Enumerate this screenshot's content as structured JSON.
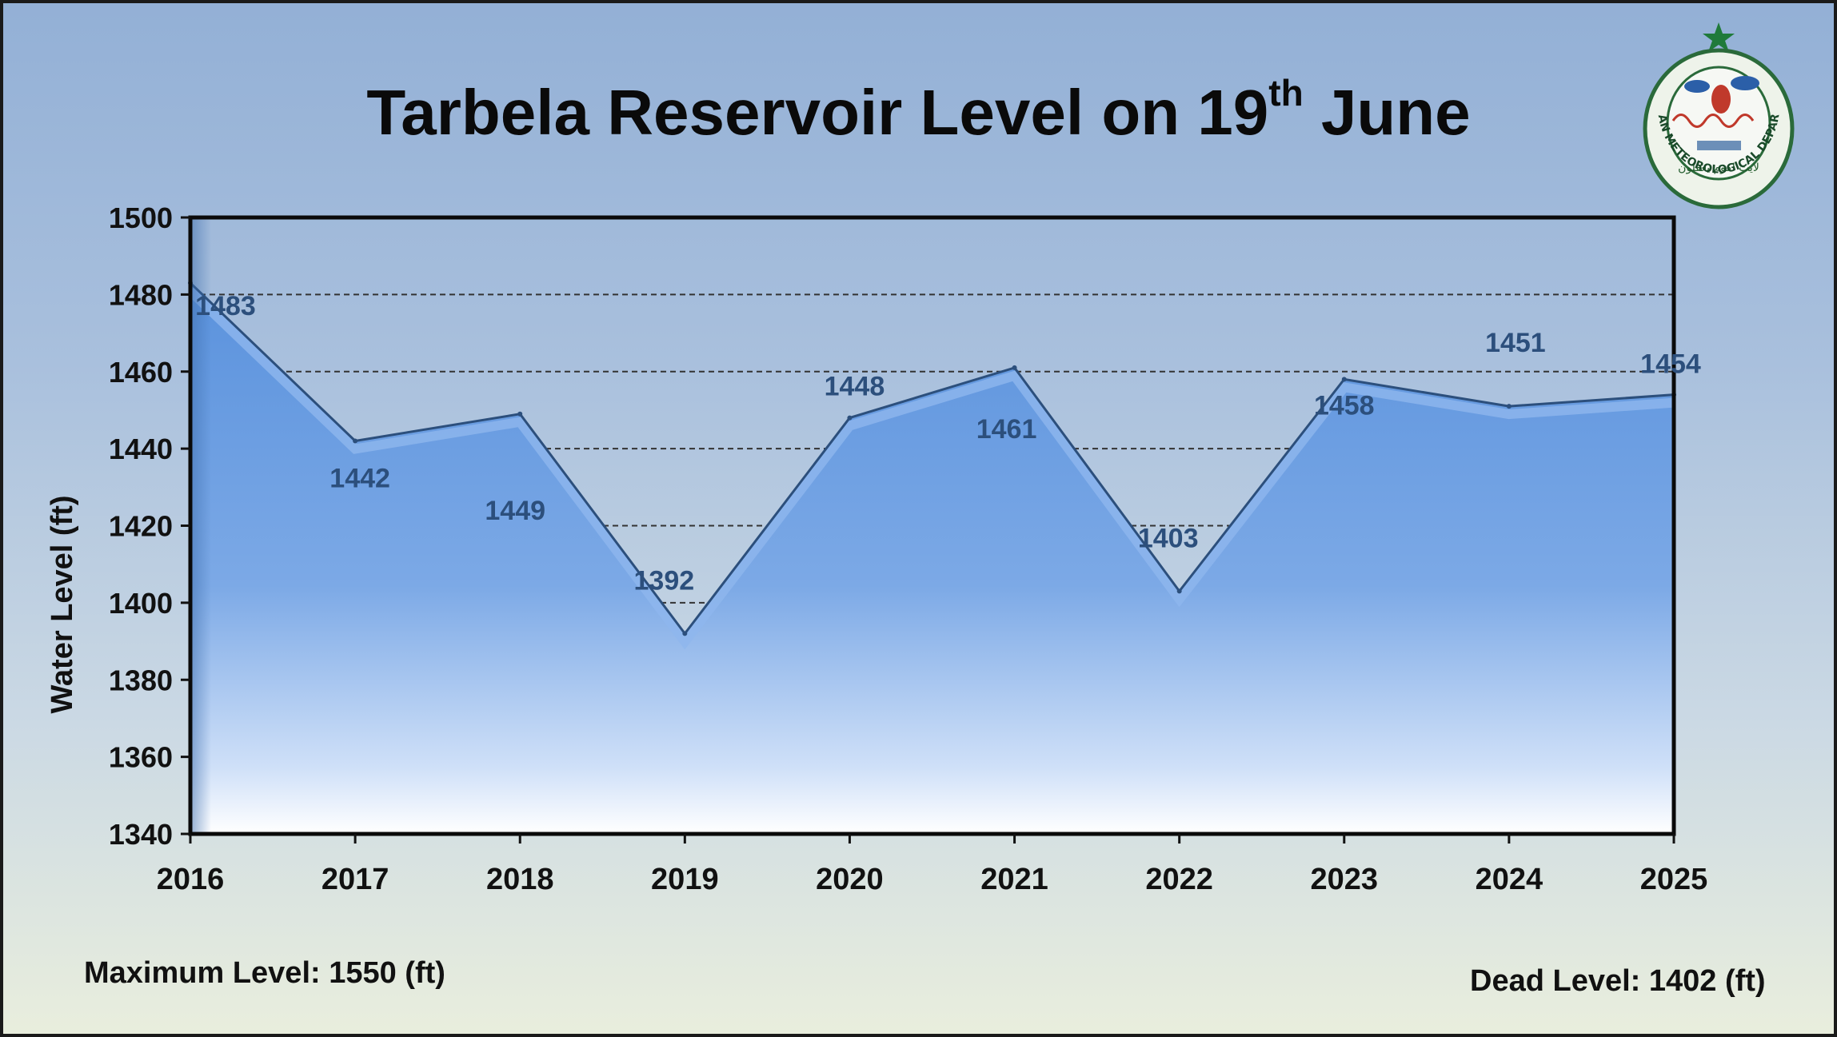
{
  "title": {
    "main": "Tarbela Reservoir Level on 19",
    "sup": "th",
    "tail": " June"
  },
  "logo": {
    "ring_text": "PAKISTAN METEOROLOGICAL DEPARTMENT",
    "motto": "لایت لقوم یعقلون",
    "icon": "pmd-emblem"
  },
  "footer": {
    "max_level": "Maximum Level: 1550 (ft)",
    "dead_level": "Dead Level: 1402 (ft)"
  },
  "colors": {
    "area_top": "#5a92dd",
    "area_bottom": "#ffffff",
    "line": "#2c4f7c",
    "label": "#2c4f7c"
  },
  "chart_data": {
    "type": "area",
    "title": "Tarbela Reservoir Level on 19th June",
    "xlabel": "",
    "ylabel": "Water Level (ft)",
    "categories": [
      "2016",
      "2017",
      "2018",
      "2019",
      "2020",
      "2021",
      "2022",
      "2023",
      "2024",
      "2025"
    ],
    "values": [
      1483,
      1442,
      1449,
      1392,
      1448,
      1461,
      1403,
      1458,
      1451,
      1454
    ],
    "ylim": [
      1340,
      1500
    ],
    "yticks": [
      1340,
      1360,
      1380,
      1400,
      1420,
      1440,
      1460,
      1480,
      1500
    ],
    "grid": "horizontal dashed",
    "legend": "none"
  }
}
